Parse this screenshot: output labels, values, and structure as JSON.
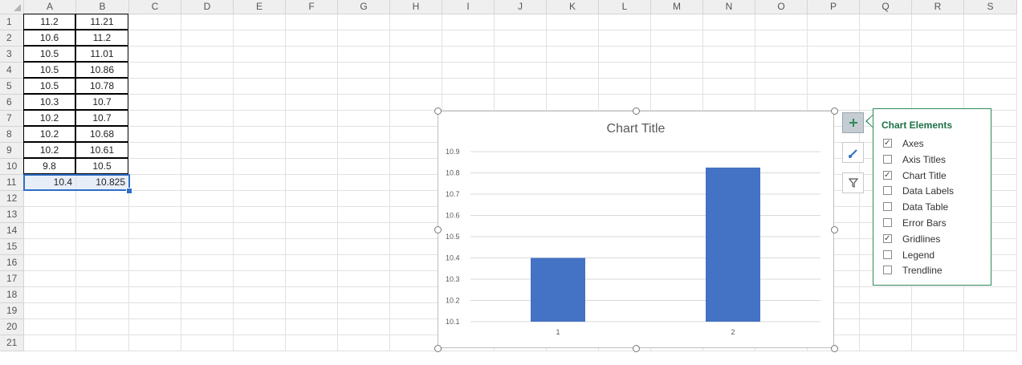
{
  "columns": [
    "A",
    "B",
    "C",
    "D",
    "E",
    "F",
    "G",
    "H",
    "I",
    "J",
    "K",
    "L",
    "M",
    "N",
    "O",
    "P",
    "Q",
    "R",
    "S"
  ],
  "rows": [
    "1",
    "2",
    "3",
    "4",
    "5",
    "6",
    "7",
    "8",
    "9",
    "10",
    "11",
    "12",
    "13",
    "14",
    "15",
    "16",
    "17",
    "18",
    "19",
    "20",
    "21"
  ],
  "cells": {
    "A": [
      "11.2",
      "10.6",
      "10.5",
      "10.5",
      "10.5",
      "10.3",
      "10.2",
      "10.2",
      "10.2",
      "9.8",
      "10.4"
    ],
    "B": [
      "11.21",
      "11.2",
      "11.01",
      "10.86",
      "10.78",
      "10.7",
      "10.7",
      "10.68",
      "10.61",
      "10.5",
      "10.825"
    ]
  },
  "chart": {
    "title": "Chart Title",
    "bar_color": "#4472c4",
    "y_ticks": [
      "10.1",
      "10.2",
      "10.3",
      "10.4",
      "10.5",
      "10.6",
      "10.7",
      "10.8",
      "10.9"
    ]
  },
  "chart_data": {
    "type": "bar",
    "title": "Chart Title",
    "categories": [
      "1",
      "2"
    ],
    "values": [
      10.4,
      10.825
    ],
    "xlabel": "",
    "ylabel": "",
    "ylim": [
      10.1,
      10.9
    ],
    "grid": true,
    "legend": "none"
  },
  "chart_buttons": [
    {
      "name": "chart-elements",
      "icon": "plus-icon"
    },
    {
      "name": "chart-styles",
      "icon": "brush-icon"
    },
    {
      "name": "chart-filters",
      "icon": "filter-icon"
    }
  ],
  "panel": {
    "title": "Chart Elements",
    "options": [
      {
        "label": "Axes",
        "checked": true
      },
      {
        "label": "Axis Titles",
        "checked": false
      },
      {
        "label": "Chart Title",
        "checked": true
      },
      {
        "label": "Data Labels",
        "checked": false
      },
      {
        "label": "Data Table",
        "checked": false
      },
      {
        "label": "Error Bars",
        "checked": false
      },
      {
        "label": "Gridlines",
        "checked": true
      },
      {
        "label": "Legend",
        "checked": false
      },
      {
        "label": "Trendline",
        "checked": false
      }
    ]
  },
  "colors": {
    "accent": "#2f6fc6",
    "panel_title": "#1e7145"
  }
}
